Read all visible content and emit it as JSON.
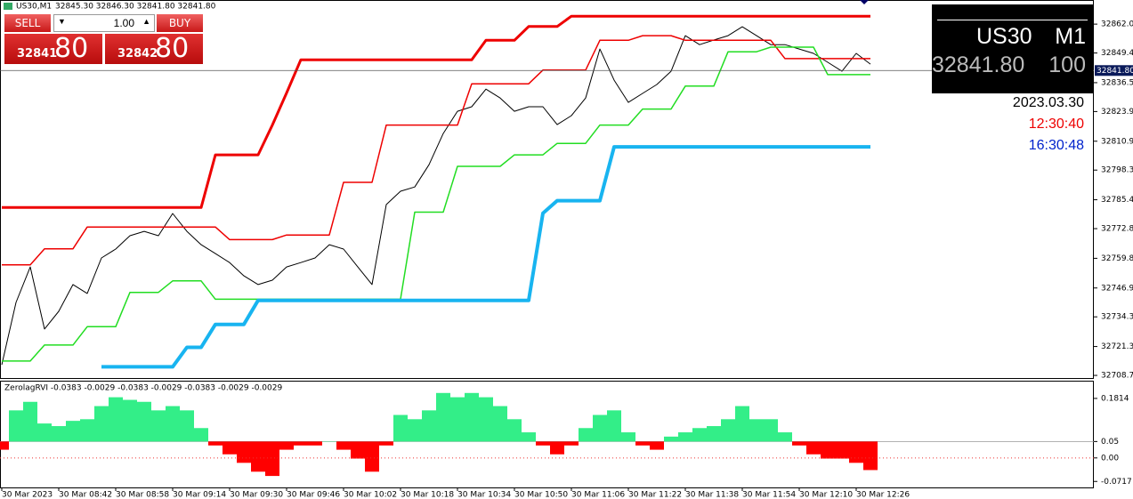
{
  "header": {
    "title": "US30,M1",
    "ohlc": "32845.30 32846.30 32841.80 32841.80"
  },
  "trade_panel": {
    "sell": "SELL",
    "buy": "BUY",
    "lot": "1.00",
    "sell_price_small": "32841",
    "sell_price_big": "80",
    "buy_price_small": "32842",
    "buy_price_big": "80"
  },
  "info_panel": {
    "symbol": "US30",
    "timeframe": "M1",
    "price": "32841.80",
    "spread": "100",
    "date": "2023.03.30",
    "time_local": "12:30:40",
    "time_server": "16:30:48"
  },
  "chart_data": [
    {
      "type": "line",
      "categories": [
        "30 Mar 2023",
        null,
        null,
        null,
        "30 Mar 08:42",
        null,
        null,
        null,
        "30 Mar 08:58",
        null,
        null,
        null,
        "30 Mar 09:14",
        null,
        null,
        null,
        "30 Mar 09:30",
        null,
        null,
        null,
        "30 Mar 09:46",
        null,
        null,
        null,
        "30 Mar 10:02",
        null,
        null,
        null,
        "30 Mar 10:18",
        null,
        null,
        null,
        "30 Mar 10:34",
        null,
        null,
        null,
        "30 Mar 10:50",
        null,
        null,
        null,
        "30 Mar 11:06",
        null,
        null,
        null,
        "30 Mar 11:22",
        null,
        null,
        null,
        "30 Mar 11:38",
        null,
        null,
        null,
        "30 Mar 11:54",
        null,
        null,
        null,
        "30 Mar 12:10",
        null,
        null,
        null,
        "30 Mar 12:26",
        null
      ],
      "ylim": [
        32707.6,
        32871.8
      ],
      "yticks": [
        32862.05,
        32849.45,
        {
          "value": 32836.5,
          "label": "32836.50"
        },
        {
          "value": 32823.9,
          "label": "32823.90"
        },
        32810.95,
        32798.35,
        {
          "value": 32785.4,
          "label": "32785.40"
        },
        {
          "value": 32772.8,
          "label": "32772.80"
        },
        32759.85,
        {
          "value": 32746.9,
          "label": "32746.90"
        },
        {
          "value": 32734.3,
          "label": "32734.30"
        },
        32721.35,
        32708.75
      ],
      "price_line": {
        "value": 32841.8,
        "label": "32841.80"
      },
      "series": [
        {
          "color": "#000000",
          "values": [
            32713.4,
            32740.6,
            32756.1,
            32729,
            32736.7,
            32748.4,
            32744.5,
            32760,
            32763.9,
            32769.7,
            32771.6,
            32769.7,
            32779.4,
            32771.6,
            32765.8,
            32761.9,
            32758,
            32752.2,
            32748.4,
            32750.3,
            32756.1,
            32758,
            32760,
            32765.8,
            32763.9,
            32756.1,
            32748.4,
            32783.3,
            32789.1,
            32791,
            32800.7,
            32814.3,
            32824,
            32826,
            32833.7,
            32829.8,
            32824,
            32826,
            32826,
            32818.2,
            32822.1,
            32829.8,
            32851.2,
            32837.6,
            32827.9,
            32831.8,
            32835.7,
            32841.5,
            32857,
            32853.1,
            32855.1,
            32857,
            32860.9,
            32857,
            32853.1,
            32853.1,
            32851.2,
            32849.3,
            32845.4,
            32841.5,
            32849.3,
            32844.6
          ]
        },
        {
          "color": "#ee0000",
          "values": [
            32782,
            32782,
            32782,
            32782,
            32782,
            32782,
            32782,
            32782,
            32782,
            32782,
            32782,
            32782,
            32782,
            32782,
            32782,
            32805,
            32805,
            32805,
            32805,
            32818,
            32832,
            32846.5,
            32846.5,
            32846.5,
            32846.5,
            32846.5,
            32846.5,
            32846.5,
            32846.5,
            32846.5,
            32846.5,
            32846.5,
            32846.5,
            32846.5,
            32855,
            32855,
            32855,
            32861,
            32861,
            32861,
            32865.5,
            32865.5,
            32865.5,
            32865.5,
            32865.5,
            32865.5,
            32865.5,
            32865.5,
            32865.5,
            32865.5,
            32865.5,
            32865.5,
            32865.5,
            32865.5,
            32865.5,
            32865.5,
            32865.5,
            32865.5,
            32865.5,
            32865.5,
            32865.5,
            32865.5
          ]
        },
        {
          "color": "#ee0000",
          "values": [
            32757,
            32757,
            32757,
            32764,
            32764,
            32764,
            32773.5,
            32773.5,
            32773.5,
            32773.5,
            32773.5,
            32773.5,
            32773.5,
            32773.5,
            32773.5,
            32773.5,
            32768,
            32768,
            32768,
            32768,
            32770,
            32770,
            32770,
            32770,
            32793,
            32793,
            32793,
            32818,
            32818,
            32818,
            32818,
            32818,
            32818,
            32836,
            32836,
            32836,
            32836,
            32836,
            32842,
            32842,
            32842,
            32842,
            32855,
            32855,
            32855,
            32857,
            32857,
            32857,
            32855,
            32855,
            32855,
            32855,
            32855,
            32855,
            32855,
            32847,
            32847,
            32847,
            32847,
            32847,
            32847,
            32847
          ]
        },
        {
          "color": "#22dd22",
          "values": [
            32715,
            32715,
            32715,
            32722,
            32722,
            32722,
            32730,
            32730,
            32730,
            32745,
            32745,
            32745,
            32750,
            32750,
            32750,
            32742,
            32742,
            32742,
            32742,
            32742,
            32742,
            32742,
            32742,
            32742,
            32742,
            32742,
            32742,
            32742,
            32742,
            32780,
            32780,
            32780,
            32800,
            32800,
            32800,
            32800,
            32805,
            32805,
            32805,
            32810,
            32810,
            32810,
            32818,
            32818,
            32818,
            32825,
            32825,
            32825,
            32835,
            32835,
            32835,
            32850,
            32850,
            32850,
            32852,
            32852,
            32852,
            32852,
            32840,
            32840,
            32840,
            32840
          ]
        },
        {
          "color": "#18b4f0",
          "values": [
            null,
            null,
            null,
            null,
            null,
            null,
            null,
            32712.5,
            32712.5,
            32712.5,
            32712.5,
            32712.5,
            32712.5,
            32721,
            32721,
            32731,
            32731,
            32731,
            32741.5,
            32741.5,
            32741.5,
            32741.5,
            32741.5,
            32741.5,
            32741.5,
            32741.5,
            32741.5,
            32741.5,
            32741.5,
            32741.5,
            32741.5,
            32741.5,
            32741.5,
            32741.5,
            32741.5,
            32741.5,
            32741.5,
            32741.5,
            32779.5,
            32785,
            32785,
            32785,
            32785,
            32808.5,
            32808.5,
            32808.5,
            32808.5,
            32808.5,
            32808.5,
            32808.5,
            32808.5,
            32808.5,
            32808.5,
            32808.5,
            32808.5,
            32808.5,
            32808.5,
            32808.5,
            32808.5,
            32808.5,
            32808.5,
            32808.5
          ]
        }
      ]
    },
    {
      "type": "bar",
      "title": "ZerolagRVI -0.0383 -0.0029 -0.0383 -0.0029 -0.0383 -0.0029 -0.0029",
      "level": 0.05,
      "up_color": "#33ee88",
      "down_color": "#ff0000",
      "ylim": [
        -0.09,
        0.23
      ],
      "yticks": [
        0.1814,
        0.05,
        {
          "value": 0,
          "label": "0.00"
        },
        -0.0717
      ],
      "values": [
        0.025,
        0.145,
        0.171,
        0.105,
        0.097,
        0.113,
        0.118,
        0.158,
        0.185,
        0.177,
        0.171,
        0.145,
        0.158,
        0.145,
        0.091,
        0.038,
        0.011,
        -0.015,
        -0.042,
        -0.055,
        0.025,
        0.038,
        0.038,
        0.051,
        0.025,
        -0.002,
        -0.042,
        0.038,
        0.131,
        0.118,
        0.145,
        0.198,
        0.185,
        0.198,
        0.185,
        0.158,
        0.118,
        0.078,
        0.038,
        0.011,
        0.038,
        0.091,
        0.131,
        0.145,
        0.078,
        0.038,
        0.025,
        0.065,
        0.078,
        0.091,
        0.097,
        0.118,
        0.158,
        0.118,
        0.118,
        0.078,
        0.038,
        0.011,
        -0.002,
        -0.002,
        -0.015,
        -0.037
      ]
    }
  ]
}
